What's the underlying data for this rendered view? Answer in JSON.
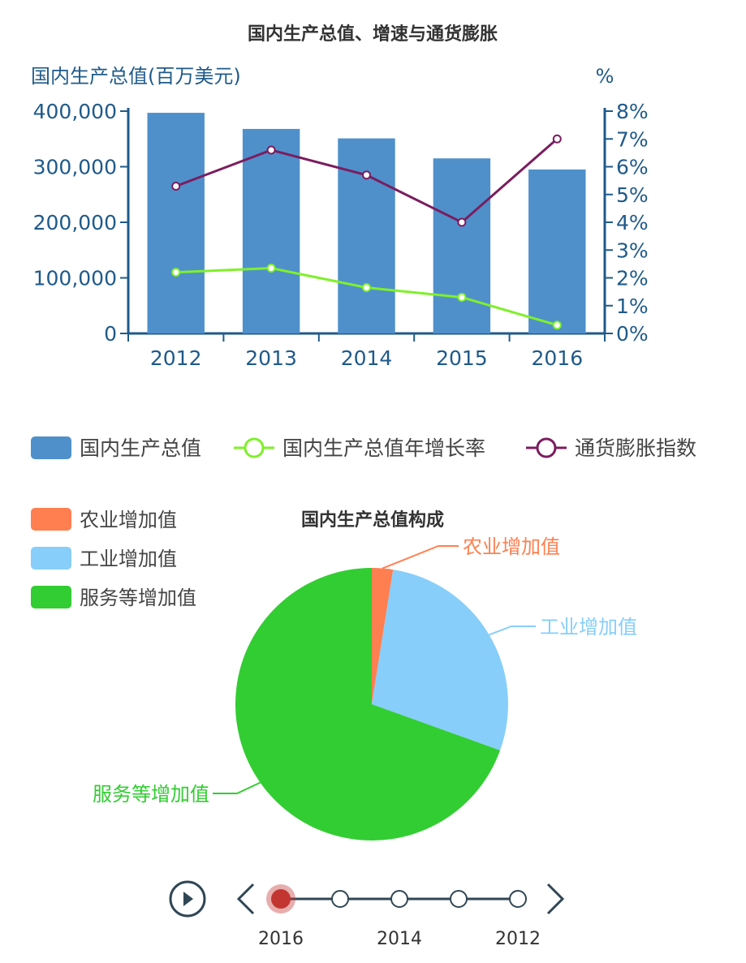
{
  "chart_data": [
    {
      "type": "bar",
      "title": "国内生产总值、增速与通货膨胀",
      "ylabel": "国内生产总值(百万美元)",
      "y2label": "%",
      "categories": [
        "2012",
        "2013",
        "2014",
        "2015",
        "2016"
      ],
      "ylim": [
        0,
        400000
      ],
      "y2lim": [
        0,
        8
      ],
      "yticks": [
        "0",
        "100,000",
        "200,000",
        "300,000",
        "400,000"
      ],
      "y2ticks": [
        "0%",
        "1%",
        "2%",
        "3%",
        "4%",
        "5%",
        "6%",
        "7%",
        "8%"
      ],
      "series": [
        {
          "name": "国内生产总值",
          "type": "bar",
          "axis": "left",
          "color": "#4f90cb",
          "values": [
            397000,
            368000,
            351000,
            315000,
            295000
          ]
        },
        {
          "name": "国内生产总值年增长率",
          "type": "line",
          "axis": "right",
          "color": "#7ff02a",
          "values": [
            2.2,
            2.35,
            1.65,
            1.3,
            0.3
          ]
        },
        {
          "name": "通货膨胀指数",
          "type": "line",
          "axis": "right",
          "color": "#7b1d5f",
          "values": [
            5.3,
            6.6,
            5.7,
            4.0,
            7.0
          ]
        }
      ],
      "legend_position": "bottom"
    },
    {
      "type": "pie",
      "title": "国内生产总值构成",
      "slices": [
        {
          "label": "农业增加值",
          "value": 2.5,
          "color": "#ff7f50"
        },
        {
          "label": "工业增加值",
          "value": 28.0,
          "color": "#87cefa"
        },
        {
          "label": "服务等增加值",
          "value": 69.5,
          "color": "#32cd32"
        }
      ],
      "legend_position": "top-left"
    }
  ],
  "timeline": {
    "labels": [
      "2016",
      "2014",
      "2012"
    ],
    "points": 5,
    "selected_index": 0,
    "accent": "#c23531",
    "color": "#304654",
    "icons": {
      "play": "play-icon",
      "prev": "chevron-left-icon",
      "next": "chevron-right-icon"
    }
  }
}
